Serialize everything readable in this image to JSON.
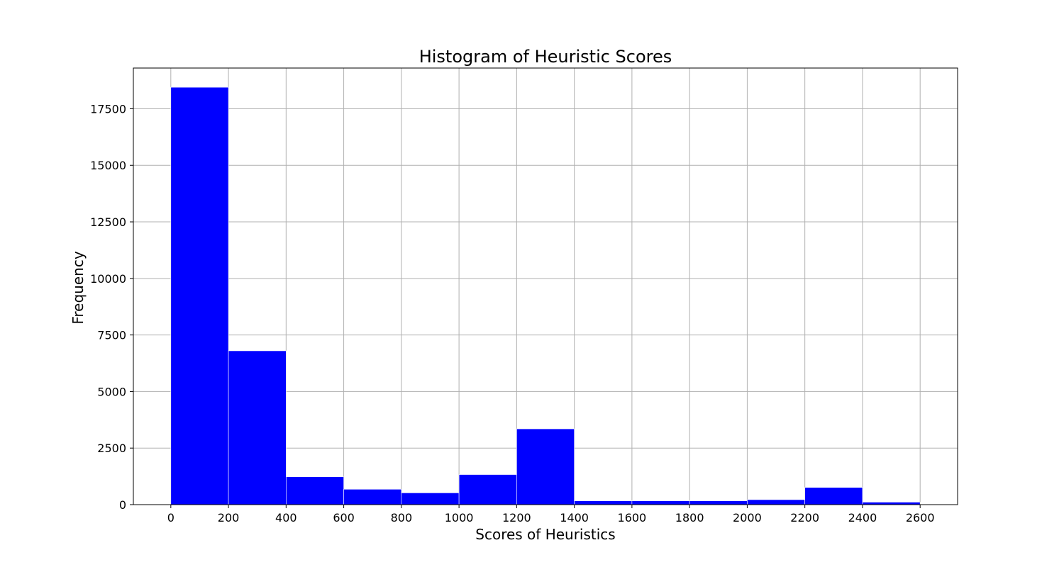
{
  "chart_data": {
    "type": "bar",
    "title": "Histogram of Heuristic Scores",
    "xlabel": "Scores of Heuristics",
    "ylabel": "Frequency",
    "bin_edges": [
      0,
      200,
      400,
      600,
      800,
      1000,
      1200,
      1400,
      1600,
      1800,
      2000,
      2200,
      2400,
      2600
    ],
    "values": [
      18450,
      6800,
      1230,
      680,
      520,
      1330,
      3350,
      170,
      170,
      170,
      220,
      760,
      110
    ],
    "xlim": [
      -130,
      2730
    ],
    "ylim": [
      0,
      19300
    ],
    "xticks": [
      "0",
      "200",
      "400",
      "600",
      "800",
      "1000",
      "1200",
      "1400",
      "1600",
      "1800",
      "2000",
      "2200",
      "2400",
      "2600"
    ],
    "yticks": [
      "0",
      "2500",
      "5000",
      "7500",
      "10000",
      "12500",
      "15000",
      "17500"
    ],
    "bar_color": "#0000ff",
    "grid": true,
    "grid_color": "#b0b0b0"
  }
}
